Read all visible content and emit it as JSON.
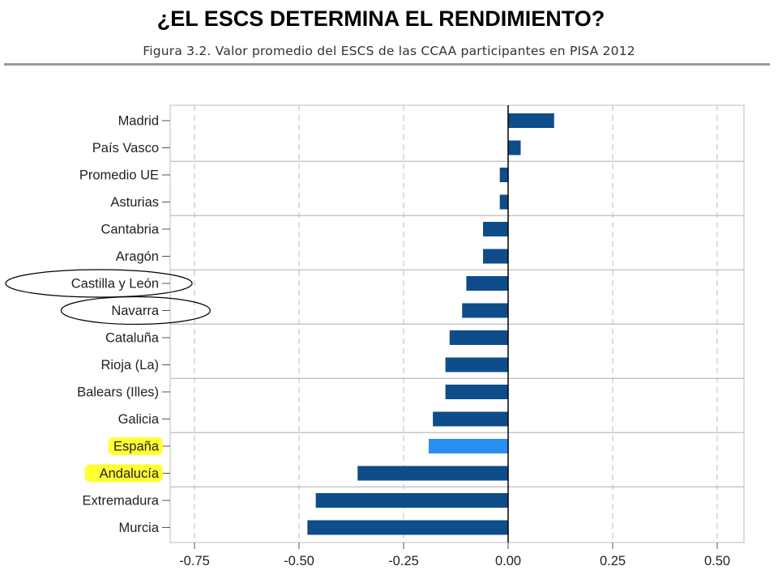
{
  "slide": {
    "title": "¿EL ESCS DETERMINA EL RENDIMIENTO?",
    "caption": "Figura 3.2. Valor promedio del ESCS de las CCAA participantes en PISA 2012"
  },
  "colors": {
    "bar": "#0f4c8a",
    "bar_highlight": "#2b8ff0",
    "label_highlight": "#ffff33",
    "grid": "#c8c8c8",
    "frame": "#bdbdbd",
    "zero_line": "#000000"
  },
  "chart_data": {
    "type": "bar",
    "orientation": "horizontal",
    "categories": [
      "Madrid",
      "País Vasco",
      "Promedio UE",
      "Asturias",
      "Cantabria",
      "Aragón",
      "Castilla y León",
      "Navarra",
      "Cataluña",
      "Rioja (La)",
      "Balears (Illes)",
      "Galicia",
      "España",
      "Andalucía",
      "Extremadura",
      "Murcia"
    ],
    "values": [
      0.11,
      0.03,
      -0.02,
      -0.02,
      -0.06,
      -0.06,
      -0.1,
      -0.11,
      -0.14,
      -0.15,
      -0.15,
      -0.18,
      -0.19,
      -0.36,
      -0.46,
      -0.48
    ],
    "highlighted_bars": [
      "España"
    ],
    "highlighted_labels": [
      "España",
      "Andalucía"
    ],
    "circled_labels": [
      "Castilla y León",
      "Navarra"
    ],
    "xlim": [
      -0.8,
      0.55
    ],
    "xticks": [
      "-0.75",
      "-0.50",
      "-0.25",
      "0.00",
      "0.25",
      "0.50"
    ],
    "xtick_values": [
      -0.75,
      -0.5,
      -0.25,
      0,
      0.25,
      0.5
    ],
    "grid": true,
    "xlabel": "",
    "ylabel": ""
  }
}
